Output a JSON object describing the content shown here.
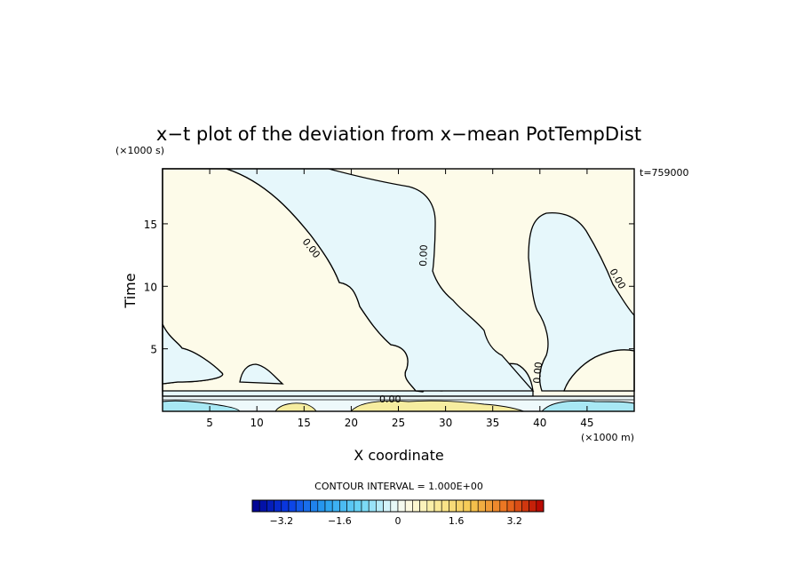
{
  "chart_data": {
    "type": "heatmap",
    "title": "x−t plot of the deviation from x−mean PotTempDist",
    "xlabel": "X coordinate",
    "ylabel": "Time",
    "x_unit": "(×1000 m)",
    "y_unit": "(×1000 s)",
    "time_stamp": "t=759000",
    "xlim": [
      0,
      50
    ],
    "ylim": [
      0,
      19.4
    ],
    "x_ticks": [
      "5",
      "10",
      "15",
      "20",
      "25",
      "30",
      "35",
      "40",
      "45"
    ],
    "y_ticks": [
      "5",
      "10",
      "15"
    ],
    "contour_interval_text": "CONTOUR INTERVAL = 1.000E+00",
    "contour_labels": [
      "0.00",
      "0.00",
      "0.00",
      "0.00",
      "0.00"
    ],
    "colorbar": {
      "min": -4.0,
      "max": 4.0,
      "step": 0.2,
      "tick_labels": [
        "−3.2",
        "−1.6",
        "0",
        "1.6",
        "3.2"
      ],
      "tick_values": [
        -3.2,
        -1.6,
        0,
        1.6,
        3.2
      ]
    },
    "regions": [
      {
        "sign": "positive",
        "description_value": 0.2
      },
      {
        "sign": "negative",
        "description_value": -0.2
      }
    ],
    "colors": {
      "positive_fill": "#fdfbe9",
      "negative_fill": "#e6f7fb",
      "strong_positive": "#f6eda0",
      "strong_negative": "#a8e8f4"
    }
  }
}
